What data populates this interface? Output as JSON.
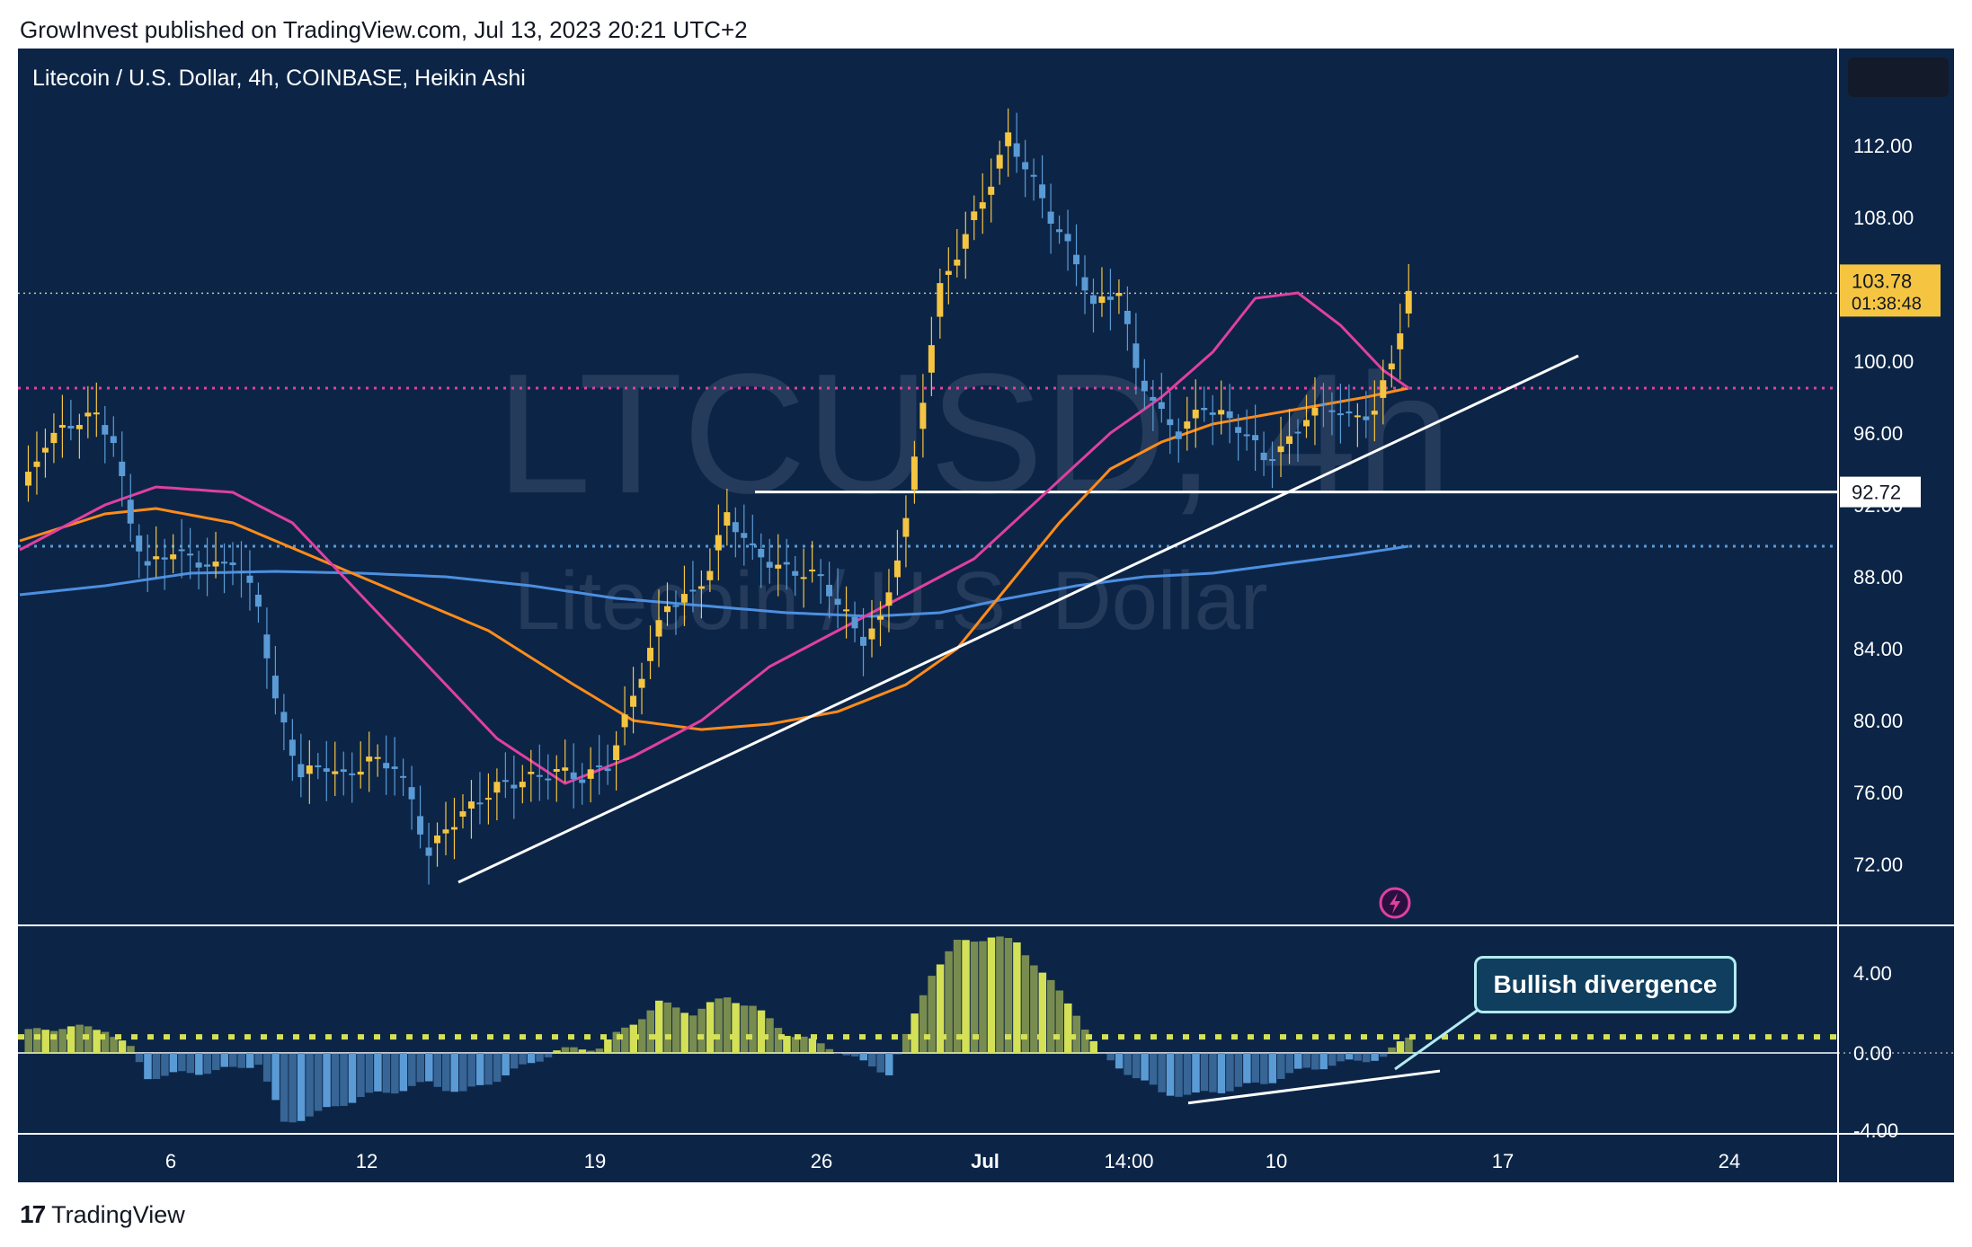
{
  "header": {
    "published": "GrowInvest published on TradingView.com, Jul 13, 2023 20:21 UTC+2"
  },
  "chart_title": "Litecoin / U.S. Dollar, 4h, COINBASE, Heikin Ashi",
  "watermark": {
    "symbol": "LTCUSD, 4h",
    "name": "Litecoin / U.S. Dollar"
  },
  "price_axis": {
    "ticks": [
      "112.00",
      "108.00",
      "100.00",
      "96.00",
      "92.00",
      "88.00",
      "84.00",
      "80.00",
      "76.00",
      "72.00"
    ],
    "current_price": "103.78",
    "countdown": "01:38:48",
    "level_label": "92.72"
  },
  "osc_axis": {
    "ticks": [
      "4.00",
      "0.00",
      "-4.00"
    ]
  },
  "time_axis": {
    "ticks": [
      "6",
      "12",
      "19",
      "26",
      "Jul",
      "14:00",
      "10",
      "17",
      "24"
    ]
  },
  "annotation": {
    "callout": "Bullish divergence"
  },
  "footer": {
    "brand": "TradingView"
  },
  "colors": {
    "background": "#0c2547",
    "candle_up": "#f5c542",
    "candle_down": "#5b9bd5",
    "ma_fast": "#e040a0",
    "ma_mid": "#ff8c1a",
    "ma_slow": "#4d8fe0",
    "osc_pos": "#d4e157",
    "osc_neg": "#5b9bd5"
  },
  "chart_data": {
    "type": "candlestick",
    "title": "Litecoin / U.S. Dollar, 4h, COINBASE, Heikin Ashi",
    "ylim": [
      69,
      116
    ],
    "close_path": [
      [
        0,
        92.5
      ],
      [
        3,
        95.5
      ],
      [
        6,
        96.5
      ],
      [
        9,
        97.0
      ],
      [
        11,
        95.5
      ],
      [
        13,
        91.0
      ],
      [
        15,
        88.5
      ],
      [
        18,
        89.5
      ],
      [
        20,
        89.0
      ],
      [
        23,
        88.5
      ],
      [
        25,
        89.0
      ],
      [
        28,
        86.5
      ],
      [
        30,
        81.0
      ],
      [
        33,
        77.0
      ],
      [
        36,
        77.5
      ],
      [
        38,
        76.8
      ],
      [
        41,
        77.8
      ],
      [
        44,
        77.5
      ],
      [
        46,
        75.5
      ],
      [
        48,
        72.5
      ],
      [
        50,
        74.0
      ],
      [
        53,
        75.2
      ],
      [
        56,
        76.3
      ],
      [
        60,
        76.8
      ],
      [
        63,
        77.2
      ],
      [
        66,
        76.8
      ],
      [
        69,
        77.5
      ],
      [
        71,
        80.0
      ],
      [
        74,
        84.0
      ],
      [
        76,
        86.5
      ],
      [
        79,
        87.0
      ],
      [
        81,
        88.5
      ],
      [
        83,
        91.5
      ],
      [
        86,
        89.5
      ],
      [
        89,
        88.5
      ],
      [
        91,
        88.3
      ],
      [
        94,
        88.0
      ],
      [
        96,
        86.5
      ],
      [
        99,
        84.5
      ],
      [
        101,
        85.5
      ],
      [
        104,
        91.0
      ],
      [
        106,
        98.0
      ],
      [
        108,
        104.0
      ],
      [
        111,
        107.0
      ],
      [
        114,
        110.0
      ],
      [
        116,
        112.5
      ],
      [
        119,
        110.0
      ],
      [
        121,
        108.0
      ],
      [
        124,
        105.5
      ],
      [
        126,
        103.0
      ],
      [
        129,
        104.0
      ],
      [
        131,
        99.5
      ],
      [
        134,
        97.0
      ],
      [
        136,
        96.0
      ],
      [
        139,
        97.5
      ],
      [
        141,
        97.0
      ],
      [
        144,
        96.0
      ],
      [
        146,
        94.5
      ],
      [
        149,
        95.5
      ],
      [
        151,
        97.0
      ],
      [
        154,
        97.5
      ],
      [
        156,
        96.8
      ],
      [
        159,
        97.2
      ],
      [
        161,
        100.0
      ],
      [
        163,
        103.7
      ]
    ],
    "osc_path": [
      [
        0,
        1.0
      ],
      [
        5,
        1.3
      ],
      [
        10,
        1.2
      ],
      [
        13,
        0.2
      ],
      [
        15,
        -1.2
      ],
      [
        20,
        -1.0
      ],
      [
        25,
        -0.8
      ],
      [
        28,
        -0.5
      ],
      [
        31,
        -3.5
      ],
      [
        35,
        -3.0
      ],
      [
        40,
        -2.2
      ],
      [
        45,
        -1.8
      ],
      [
        48,
        -1.5
      ],
      [
        52,
        -2.0
      ],
      [
        56,
        -1.3
      ],
      [
        60,
        -0.5
      ],
      [
        63,
        0.1
      ],
      [
        68,
        0.3
      ],
      [
        72,
        1.5
      ],
      [
        75,
        2.5
      ],
      [
        79,
        2.0
      ],
      [
        83,
        2.8
      ],
      [
        86,
        2.3
      ],
      [
        90,
        1.0
      ],
      [
        95,
        0.3
      ],
      [
        99,
        -0.5
      ],
      [
        102,
        -1.0
      ],
      [
        104,
        0.8
      ],
      [
        107,
        4.0
      ],
      [
        110,
        5.5
      ],
      [
        114,
        5.8
      ],
      [
        117,
        5.5
      ],
      [
        121,
        3.5
      ],
      [
        124,
        2.0
      ],
      [
        127,
        -0.2
      ],
      [
        131,
        -1.2
      ],
      [
        134,
        -2.0
      ],
      [
        138,
        -2.1
      ],
      [
        142,
        -1.8
      ],
      [
        146,
        -1.5
      ],
      [
        151,
        -0.8
      ],
      [
        157,
        -0.4
      ],
      [
        160,
        -0.2
      ],
      [
        163,
        0.8
      ]
    ],
    "ma_fast": [
      [
        0,
        89.5
      ],
      [
        10,
        92.0
      ],
      [
        16,
        93.0
      ],
      [
        25,
        92.7
      ],
      [
        32,
        91.0
      ],
      [
        40,
        87.0
      ],
      [
        48,
        83.0
      ],
      [
        56,
        79.0
      ],
      [
        64,
        76.5
      ],
      [
        72,
        78.0
      ],
      [
        80,
        80.0
      ],
      [
        88,
        83.0
      ],
      [
        96,
        85.0
      ],
      [
        104,
        87.0
      ],
      [
        112,
        89.0
      ],
      [
        120,
        92.5
      ],
      [
        128,
        96.0
      ],
      [
        134,
        98.0
      ],
      [
        140,
        100.5
      ],
      [
        145,
        103.5
      ],
      [
        150,
        103.8
      ],
      [
        155,
        102.0
      ],
      [
        160,
        99.5
      ],
      [
        163,
        98.5
      ]
    ],
    "ma_mid": [
      [
        0,
        90.0
      ],
      [
        10,
        91.5
      ],
      [
        16,
        91.8
      ],
      [
        25,
        91.0
      ],
      [
        35,
        89.0
      ],
      [
        45,
        87.0
      ],
      [
        55,
        85.0
      ],
      [
        65,
        82.0
      ],
      [
        72,
        80.0
      ],
      [
        80,
        79.5
      ],
      [
        88,
        79.8
      ],
      [
        96,
        80.5
      ],
      [
        104,
        82.0
      ],
      [
        110,
        84.0
      ],
      [
        116,
        87.5
      ],
      [
        122,
        91.0
      ],
      [
        128,
        94.0
      ],
      [
        134,
        95.5
      ],
      [
        140,
        96.5
      ],
      [
        146,
        97.0
      ],
      [
        152,
        97.5
      ],
      [
        158,
        98.0
      ],
      [
        163,
        98.5
      ]
    ],
    "ma_slow": [
      [
        0,
        87.0
      ],
      [
        10,
        87.5
      ],
      [
        20,
        88.2
      ],
      [
        30,
        88.3
      ],
      [
        40,
        88.2
      ],
      [
        50,
        88.0
      ],
      [
        60,
        87.5
      ],
      [
        70,
        86.8
      ],
      [
        80,
        86.4
      ],
      [
        90,
        86.0
      ],
      [
        100,
        85.8
      ],
      [
        108,
        86.0
      ],
      [
        116,
        86.8
      ],
      [
        124,
        87.5
      ],
      [
        132,
        88.0
      ],
      [
        140,
        88.2
      ],
      [
        148,
        88.7
      ],
      [
        156,
        89.2
      ],
      [
        163,
        89.7
      ]
    ],
    "horizontal_levels": [
      {
        "value": 103.78,
        "style": "dotted",
        "color": "#c8c8a0"
      },
      {
        "value": 98.5,
        "style": "dotted",
        "color": "#e040a0"
      },
      {
        "value": 92.72,
        "style": "solid",
        "color": "#ffffff",
        "from": 86
      },
      {
        "value": 89.7,
        "style": "dotted",
        "color": "#5b9bd5"
      }
    ],
    "trendlines": [
      {
        "from": [
          49,
          71.0
        ],
        "to": [
          183,
          100.3
        ],
        "color": "#ffffff"
      }
    ],
    "osc_trendline": {
      "from": [
        137,
        -2.5
      ],
      "to": [
        166,
        -0.9
      ],
      "color": "#ffffff"
    },
    "osc_signal_level": 0.8,
    "osc_ylim": [
      -4,
      6
    ]
  }
}
